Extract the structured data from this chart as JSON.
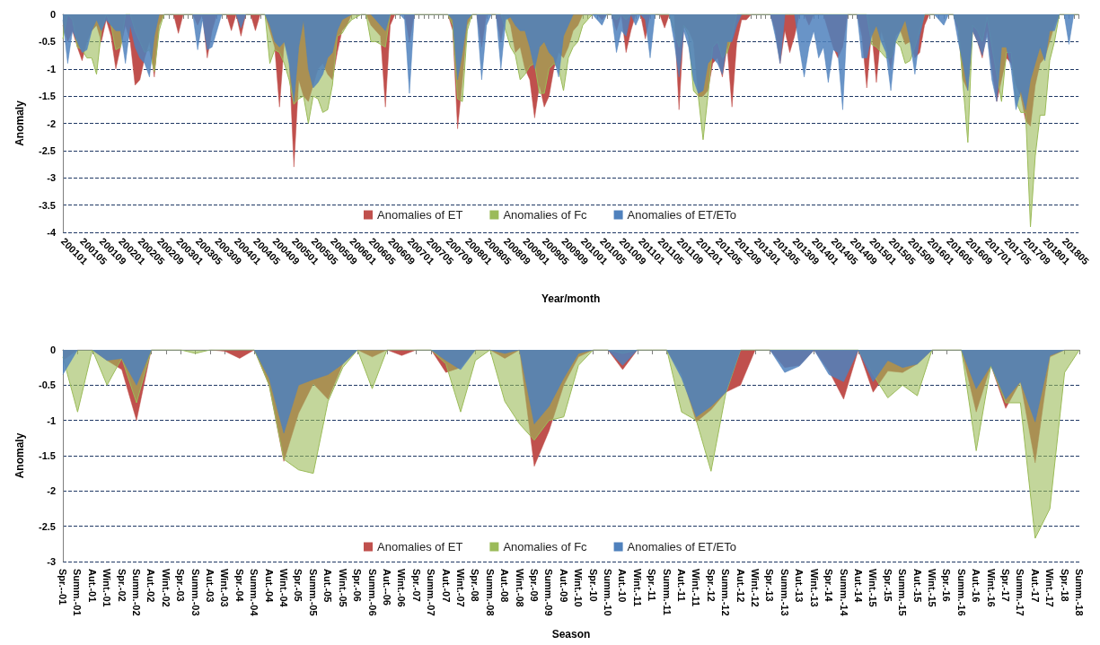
{
  "chart_data": [
    {
      "type": "area",
      "xlabel": "Year/month",
      "ylabel": "Anomaly",
      "ylim": [
        -4,
        0
      ],
      "yticks": [
        -4,
        -3.5,
        -3,
        -2.5,
        -2,
        -1.5,
        -1,
        -0.5,
        0
      ],
      "grid": "y",
      "legend": "bottom",
      "marker": "none",
      "tick_labels": "xy",
      "categories": [
        "200101",
        null,
        null,
        null,
        "200105",
        null,
        null,
        null,
        "200109",
        null,
        null,
        null,
        "200201",
        null,
        null,
        null,
        "200205",
        null,
        null,
        null,
        "200209",
        null,
        null,
        null,
        "200301",
        null,
        null,
        null,
        "200305",
        null,
        null,
        null,
        "200309",
        null,
        null,
        null,
        "200401",
        null,
        null,
        null,
        "200405",
        null,
        null,
        null,
        "200409",
        null,
        null,
        null,
        "200501",
        null,
        null,
        null,
        "200505",
        null,
        null,
        null,
        "200509",
        null,
        null,
        null,
        "200601",
        null,
        null,
        null,
        "200605",
        null,
        null,
        null,
        "200609",
        null,
        null,
        null,
        "200701",
        null,
        null,
        null,
        "200705",
        null,
        null,
        null,
        "200709",
        null,
        null,
        null,
        "200801",
        null,
        null,
        null,
        "200805",
        null,
        null,
        null,
        "200809",
        null,
        null,
        null,
        "200901",
        null,
        null,
        null,
        "200905",
        null,
        null,
        null,
        "200909",
        null,
        null,
        null,
        "201001",
        null,
        null,
        null,
        "201005",
        null,
        null,
        null,
        "201009",
        null,
        null,
        null,
        "201101",
        null,
        null,
        null,
        "201105",
        null,
        null,
        null,
        "201109",
        null,
        null,
        null,
        "201201",
        null,
        null,
        null,
        "201205",
        null,
        null,
        null,
        "201209",
        null,
        null,
        null,
        "201301",
        null,
        null,
        null,
        "201305",
        null,
        null,
        null,
        "201309",
        null,
        null,
        null,
        "201401",
        null,
        null,
        null,
        "201405",
        null,
        null,
        null,
        "201409",
        null,
        null,
        null,
        "201501",
        null,
        null,
        null,
        "201505",
        null,
        null,
        null,
        "201509",
        null,
        null,
        null,
        "201601",
        null,
        null,
        null,
        "201605",
        null,
        null,
        null,
        "201609",
        null,
        null,
        null,
        "201701",
        null,
        null,
        null,
        "201705",
        null,
        null,
        null,
        "201709",
        null,
        null,
        null,
        "201801",
        null,
        null,
        null,
        "201805",
        null,
        null,
        null
      ],
      "series": [
        {
          "name": "Anomalies of ET",
          "color": "#c0504d",
          "values": [
            -0.2,
            -0.5,
            -0.3,
            -0.6,
            -0.85,
            -0.5,
            -0.3,
            -0.2,
            -0.5,
            -0.1,
            -0.4,
            -1.0,
            -0.6,
            -0.2,
            -0.5,
            -1.3,
            -1.2,
            -0.8,
            -0.5,
            -1.15,
            -0.2,
            0,
            0,
            0,
            -0.35,
            0,
            0,
            0,
            -0.2,
            0,
            -0.8,
            -0.3,
            0,
            0,
            0,
            -0.3,
            0,
            -0.4,
            0,
            0,
            -0.3,
            0,
            0,
            -0.3,
            -0.6,
            -1.7,
            -0.5,
            -0.8,
            -2.8,
            -1.2,
            -1.5,
            -1.6,
            -1.3,
            -1.0,
            -0.9,
            -1.1,
            -1.2,
            -0.7,
            -0.3,
            -0.2,
            0,
            0,
            0,
            0,
            -0.2,
            -0.3,
            -0.4,
            -1.7,
            -0.2,
            0,
            0,
            0,
            -0.5,
            0,
            0,
            0,
            0,
            0,
            0,
            0,
            0,
            -0.3,
            -2.1,
            -1.2,
            -0.2,
            0,
            0,
            -0.6,
            0,
            0,
            0,
            -0.5,
            0,
            -0.2,
            -0.7,
            -0.6,
            -1.0,
            -1.2,
            -1.9,
            -1.3,
            -1.7,
            -1.5,
            -1.0,
            -0.7,
            -0.8,
            -0.6,
            -0.3,
            -0.2,
            0,
            0,
            0,
            0,
            -0.1,
            0,
            0,
            -0.3,
            0,
            -0.7,
            -0.3,
            0,
            0,
            -0.45,
            0,
            0,
            0,
            -0.25,
            0,
            0,
            -1.75,
            -0.2,
            -0.3,
            -0.5,
            -1.5,
            -1.5,
            -1.4,
            -0.9,
            -0.8,
            -1.15,
            -0.6,
            -1.7,
            -0.5,
            -0.1,
            -0.1,
            0,
            0,
            0,
            0,
            0,
            -0.3,
            -0.9,
            -0.3,
            -0.7,
            -0.4,
            0,
            0,
            -0.2,
            0,
            0,
            0,
            -0.3,
            -0.6,
            -0.8,
            -0.6,
            0,
            0,
            0,
            -0.4,
            -1.35,
            -0.3,
            -1.25,
            -0.3,
            -0.6,
            -1.0,
            -0.4,
            -0.3,
            -0.55,
            -0.5,
            -0.8,
            -0.7,
            -0.2,
            0,
            0,
            0,
            0,
            0,
            0,
            -0.3,
            -1.2,
            -1.4,
            -0.3,
            -0.5,
            -0.8,
            -0.3,
            -1.0,
            -1.6,
            -1.2,
            -0.8,
            -0.9,
            -1.3,
            -1.5,
            -1.95,
            -2.05,
            -1.3,
            -0.9,
            -0.8,
            -0.5,
            -0.2,
            0,
            0,
            0,
            0,
            0
          ]
        },
        {
          "name": "Anomalies of Fc",
          "color": "#9bbb59",
          "values": [
            -0.45,
            0,
            -0.1,
            -0.6,
            -0.65,
            -0.8,
            -0.8,
            -1.1,
            -0.3,
            0,
            -0.2,
            -0.65,
            -0.6,
            0,
            0,
            -0.3,
            -0.5,
            -0.7,
            -0.65,
            -1.05,
            -0.3,
            0,
            0,
            0,
            0,
            0,
            0,
            0,
            0,
            0,
            0,
            0,
            0,
            0,
            0,
            0,
            0,
            0,
            0,
            0,
            0,
            0,
            0,
            -0.9,
            -0.65,
            -0.7,
            -0.9,
            -1.2,
            -1.65,
            -1.55,
            -1.5,
            -2.0,
            -1.5,
            -1.55,
            -1.8,
            -1.75,
            -1.3,
            -0.4,
            -0.35,
            -0.2,
            -0.1,
            -0.05,
            0,
            0,
            -0.5,
            -0.5,
            -0.55,
            -0.6,
            0,
            0,
            0,
            0,
            0,
            0,
            0,
            0,
            0,
            0,
            0,
            0,
            0,
            -0.2,
            -1.55,
            -1.6,
            -0.3,
            0,
            0,
            0,
            0,
            0,
            0,
            0,
            -0.3,
            -0.6,
            -0.75,
            -1.2,
            -1.1,
            -0.95,
            -0.9,
            -1.45,
            -1.45,
            -1.0,
            -0.9,
            -1.0,
            -1.4,
            -0.8,
            -0.6,
            -0.5,
            -0.2,
            -0.1,
            0,
            0,
            0,
            0,
            0,
            -0.1,
            0,
            -0.1,
            0,
            0,
            0,
            0,
            0,
            0,
            0,
            0,
            0,
            -0.3,
            -0.6,
            -0.2,
            -0.4,
            -1.4,
            -1.5,
            -2.3,
            -1.5,
            -0.6,
            -0.5,
            -0.8,
            -0.7,
            -0.4,
            0,
            0,
            0,
            0,
            0,
            0,
            0,
            0,
            0,
            0,
            0,
            0,
            0,
            0,
            0,
            0,
            0,
            0,
            0,
            0,
            0,
            0,
            0,
            0,
            0,
            0,
            0,
            0,
            -0.55,
            -0.6,
            -0.7,
            -0.8,
            -0.8,
            -0.5,
            -0.6,
            -0.9,
            -0.85,
            -0.6,
            -0.3,
            0,
            0,
            0,
            0,
            0,
            0,
            0,
            -0.2,
            -1.3,
            -2.35,
            -0.2,
            -0.3,
            -0.5,
            -0.05,
            -0.6,
            -1.1,
            -1.6,
            -0.7,
            -0.7,
            -1.6,
            -1.8,
            -1.8,
            -3.9,
            -2.6,
            -1.85,
            -1.85,
            -0.85,
            -0.5,
            0,
            0,
            0,
            0,
            0
          ]
        },
        {
          "name": "Anomalies of ET/ETo",
          "color": "#4f81bd",
          "values": [
            -0.1,
            -0.9,
            -0.3,
            -0.5,
            -0.7,
            -0.65,
            -0.3,
            -0.1,
            -0.3,
            -0.1,
            -0.2,
            -0.3,
            -0.3,
            -0.9,
            -0.2,
            -0.6,
            -0.8,
            -0.9,
            -1.15,
            -0.4,
            0,
            0,
            0,
            0,
            0,
            0,
            0,
            0,
            -0.65,
            -0.1,
            -0.65,
            -0.6,
            -0.3,
            0,
            0,
            0,
            0,
            -0.25,
            0,
            0,
            0,
            0,
            0,
            -0.2,
            -0.5,
            -0.6,
            -0.5,
            -0.9,
            -1.6,
            -0.6,
            -0.1,
            -1.0,
            -1.35,
            -1.25,
            -1.1,
            -0.8,
            -0.7,
            -0.3,
            -0.1,
            -0.05,
            0,
            0,
            0,
            0,
            0,
            -0.1,
            -0.2,
            -0.3,
            0,
            0,
            0,
            -0.1,
            -1.45,
            0,
            0,
            0,
            0,
            0,
            0,
            0,
            0,
            -0.1,
            -1.2,
            -0.7,
            -0.1,
            0,
            0,
            -1.2,
            -0.2,
            0,
            0,
            -1.0,
            -0.1,
            -0.05,
            -0.2,
            -0.3,
            -0.3,
            -0.6,
            -1.0,
            -0.6,
            -0.5,
            -0.7,
            -0.8,
            -1.15,
            -0.4,
            -0.2,
            0,
            0,
            0,
            0,
            0,
            -0.1,
            -0.2,
            0,
            0,
            -0.7,
            -0.3,
            -0.4,
            0,
            -0.2,
            0,
            -0.1,
            -0.8,
            0,
            0,
            0,
            0,
            -0.5,
            -1.15,
            -0.3,
            -0.6,
            -1.2,
            -1.45,
            -1.4,
            -0.9,
            -0.8,
            -0.9,
            -1.1,
            -0.5,
            -0.5,
            -0.2,
            0,
            0,
            0,
            0,
            0,
            0,
            0,
            -0.4,
            -0.9,
            0,
            0,
            0,
            -0.6,
            -1.15,
            -0.6,
            -0.3,
            -0.8,
            -0.6,
            -1.25,
            -0.65,
            -0.7,
            -1.75,
            0,
            0,
            0,
            -0.8,
            -0.8,
            -0.4,
            -0.2,
            -0.5,
            -0.7,
            -1.4,
            -0.5,
            -0.3,
            -0.1,
            -0.5,
            -1.1,
            -0.4,
            0,
            0,
            0,
            -0.1,
            -0.2,
            0,
            0,
            -0.5,
            -0.9,
            -1.4,
            -0.3,
            -0.5,
            -0.75,
            -0.4,
            -1.2,
            -1.6,
            -0.6,
            -0.6,
            -1.0,
            -1.75,
            -1.4,
            -1.75,
            -1.2,
            -0.9,
            -0.6,
            -0.85,
            -0.3,
            -0.3,
            0,
            0,
            -0.55,
            0,
            0
          ]
        }
      ]
    },
    {
      "type": "area",
      "xlabel": "Season",
      "ylabel": "Anomaly",
      "ylim": [
        -3,
        0
      ],
      "yticks": [
        -3,
        -2.5,
        -2,
        -1.5,
        -1,
        -0.5,
        0
      ],
      "grid": "y",
      "legend": "bottom",
      "marker": "none",
      "categories": [
        "Spr.--01",
        "Summ.-01",
        "Aut.-01",
        "Wint.-01",
        "Spr.-02",
        "Summ.-02",
        "Aut.-02",
        "Wint.-02",
        "Spr.-03",
        "Summ.-03",
        "Aut.-03",
        "Wint.-03",
        "Spr.-04",
        "Summ.-04",
        "Aut.-04",
        "Wint.-04",
        "Spr.-05",
        "Summ.-05",
        "Aut.-05",
        "Wint.-05",
        "Spr.-06",
        "Summ.-06",
        "Aut.--06",
        "Wint.-06",
        "Spr.-07",
        "Summ.-07",
        "Aut.-07",
        "Wint.-07",
        "Spr.-08",
        "Summ.-08",
        "Aut.-08",
        "Wint.-08",
        "Spr.-09",
        "Summ.-09",
        "Aut.-09",
        "Wint.-10",
        "Spr.-10",
        "Summ.-10",
        "Aut.-10",
        "Wint.-11",
        "Spr.-11",
        "Summ.-11",
        "Aut.-11",
        "Wint.-11",
        "Spr.-12",
        "Summ.-12",
        "Aut.-12",
        "Wint.-12",
        "Spr.-13",
        "Summ.-13",
        "Aut.-13",
        "Wint.-13",
        "Spr.-14",
        "Summ.-14",
        "Aut.-14",
        "Wint.-15",
        "Spr.-15",
        "Summ.-15",
        "Aut.-15",
        "Wint.-15",
        "Spr.-16",
        "Summ.-16",
        "Aut.-16",
        "Wint.-16",
        "Spr.-17",
        "Summ.-17",
        "Aut.-17",
        "Wint.-17",
        "Spr.-18",
        "Summ.-18"
      ],
      "series": [
        {
          "name": "Anomalies of ET",
          "color": "#c0504d",
          "values": [
            -0.15,
            0,
            0,
            -0.15,
            -0.28,
            -1.0,
            0,
            0,
            0,
            0,
            0,
            -0.02,
            -0.12,
            0,
            -0.5,
            -1.58,
            -0.9,
            -0.48,
            -0.7,
            -0.2,
            0,
            -0.1,
            0,
            -0.08,
            0,
            0,
            -0.32,
            -0.25,
            0,
            0,
            -0.12,
            0,
            -1.65,
            -1.15,
            -0.5,
            -0.1,
            0,
            0,
            -0.28,
            0,
            0,
            0,
            -0.35,
            -1.02,
            -0.85,
            -0.6,
            -0.5,
            0,
            0,
            -0.25,
            -0.22,
            0,
            -0.3,
            -0.7,
            0,
            -0.6,
            -0.3,
            -0.32,
            -0.2,
            0,
            0,
            0,
            -0.88,
            -0.22,
            -0.83,
            -0.45,
            -1.6,
            -0.1,
            0,
            0
          ]
        },
        {
          "name": "Anomalies of Fc",
          "color": "#9bbb59",
          "values": [
            -0.1,
            -0.88,
            0,
            -0.5,
            -0.12,
            -0.75,
            0,
            0,
            0,
            -0.05,
            0,
            0,
            0,
            0,
            -0.5,
            -1.55,
            -1.7,
            -1.75,
            -0.73,
            -0.25,
            0,
            -0.55,
            0,
            0,
            0,
            0,
            -0.2,
            -0.88,
            -0.15,
            0,
            -0.73,
            -1.05,
            -1.28,
            -1.0,
            -0.95,
            -0.22,
            0,
            0,
            -0.05,
            0,
            0,
            0,
            -0.88,
            -1.0,
            -1.72,
            -0.62,
            0,
            0,
            0,
            0,
            0,
            0,
            0,
            0,
            0,
            -0.35,
            -0.68,
            -0.5,
            -0.65,
            0,
            0,
            0,
            -1.43,
            -0.22,
            -0.75,
            -0.75,
            -2.67,
            -2.25,
            -0.32,
            0
          ]
        },
        {
          "name": "Anomalies of ET/ETo",
          "color": "#4f81bd",
          "values": [
            -0.35,
            0,
            0,
            -0.15,
            -0.12,
            -0.5,
            0,
            0,
            0,
            0,
            0,
            0,
            0,
            0,
            -0.4,
            -1.18,
            -0.5,
            -0.42,
            -0.35,
            -0.2,
            0,
            0,
            0,
            0,
            0,
            0,
            -0.15,
            -0.28,
            0,
            0,
            -0.05,
            0,
            -1.05,
            -0.8,
            -0.4,
            -0.05,
            0,
            0,
            -0.22,
            0,
            0,
            0,
            -0.4,
            -0.95,
            -0.8,
            -0.6,
            0,
            0,
            0,
            -0.32,
            -0.23,
            0,
            -0.35,
            -0.45,
            0,
            -0.45,
            -0.15,
            -0.25,
            -0.2,
            0,
            0,
            0,
            -0.55,
            -0.22,
            -0.7,
            -0.45,
            -1.02,
            -0.08,
            0,
            0
          ]
        }
      ]
    }
  ]
}
